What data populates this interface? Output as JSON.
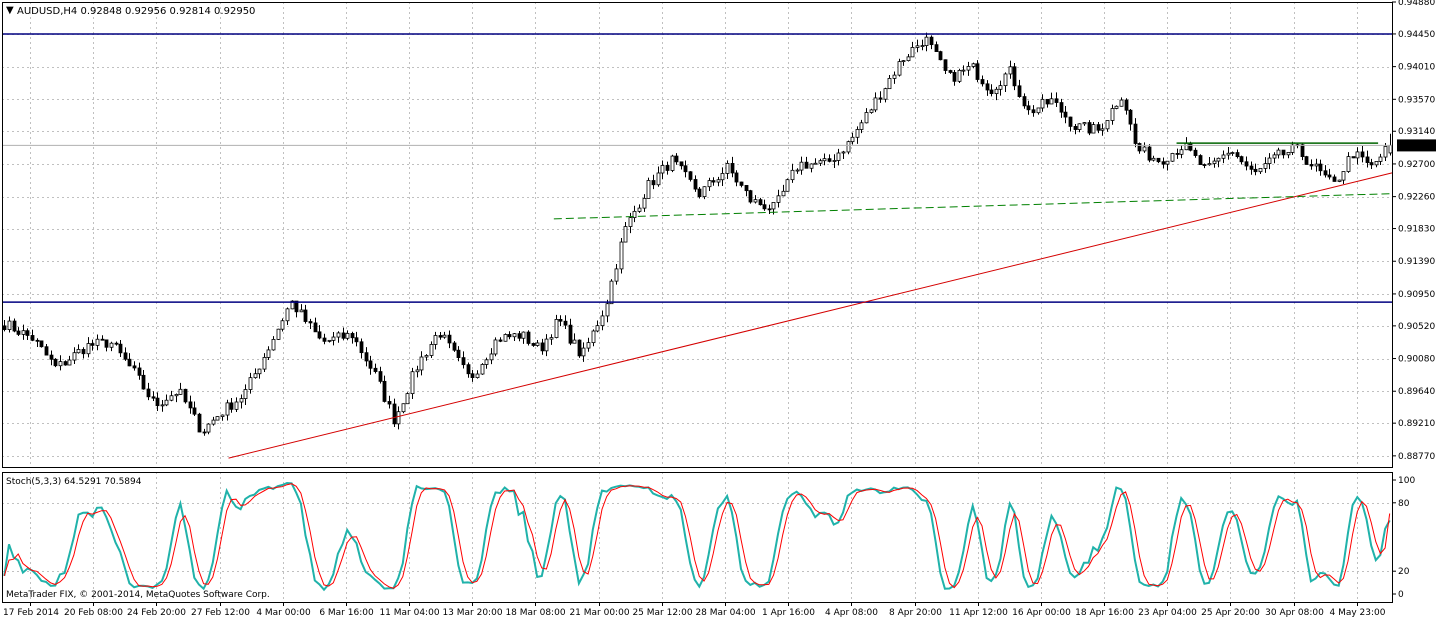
{
  "header": {
    "menu_glyph": "▼",
    "symbol_info": "AUDUSD,H4  0.92848 0.92956 0.92814 0.92950"
  },
  "stoch_header": "Stoch(5,3,3) 64.5291 70.5894",
  "copyright": "MetaTrader FIX, © 2001-2014, MetaQuotes Software Corp.",
  "colors": {
    "background": "#ffffff",
    "grid": "#c0c0c0",
    "candle": "#000000",
    "hline": "#000080",
    "trendline": "#d40000",
    "dashline": "#008000",
    "resistance": "#006400",
    "stoch_main": "#20b2aa",
    "stoch_signal": "#ff0000",
    "price_badge_bg": "#000000",
    "price_badge_text": "#ffffff"
  },
  "chart_data": {
    "type": "candlestick",
    "symbol": "AUDUSD",
    "timeframe": "H4",
    "ohlc_last": {
      "open": 0.92848,
      "high": 0.92956,
      "low": 0.92814,
      "close": 0.9295
    },
    "current_price_label": "0.92950",
    "current_price": 0.9295,
    "ylim": [
      0.8862,
      0.9488
    ],
    "y_ticks": [
      "0.94880",
      "0.94450",
      "0.94010",
      "0.93570",
      "0.93140",
      "0.92700",
      "0.92260",
      "0.91830",
      "0.91390",
      "0.90950",
      "0.90520",
      "0.90080",
      "0.89640",
      "0.89210",
      "0.88770"
    ],
    "x_ticks": [
      "17 Feb 2014",
      "20 Feb 08:00",
      "24 Feb 20:00",
      "27 Feb 12:00",
      "4 Mar 00:00",
      "6 Mar 16:00",
      "11 Mar 04:00",
      "13 Mar 20:00",
      "18 Mar 08:00",
      "21 Mar 00:00",
      "25 Mar 12:00",
      "28 Mar 04:00",
      "1 Apr 16:00",
      "4 Apr 08:00",
      "8 Apr 20:00",
      "11 Apr 12:00",
      "16 Apr 00:00",
      "18 Apr 16:00",
      "23 Apr 04:00",
      "25 Apr 20:00",
      "30 Apr 08:00",
      "4 May 23:00"
    ],
    "bar_count": 300,
    "price_path": [
      [
        0,
        0.9055
      ],
      [
        12,
        0.9035
      ],
      [
        22,
        0.8995
      ],
      [
        35,
        0.9025
      ],
      [
        45,
        0.903
      ],
      [
        55,
        0.899
      ],
      [
        64,
        0.8945
      ],
      [
        74,
        0.8965
      ],
      [
        84,
        0.891
      ],
      [
        92,
        0.8935
      ],
      [
        102,
        0.896
      ],
      [
        112,
        0.902
      ],
      [
        122,
        0.9085
      ],
      [
        135,
        0.903
      ],
      [
        148,
        0.904
      ],
      [
        158,
        0.8985
      ],
      [
        166,
        0.8925
      ],
      [
        176,
        0.9
      ],
      [
        185,
        0.9045
      ],
      [
        198,
        0.898
      ],
      [
        210,
        0.9035
      ],
      [
        220,
        0.904
      ],
      [
        228,
        0.902
      ],
      [
        236,
        0.906
      ],
      [
        246,
        0.901
      ],
      [
        256,
        0.908
      ],
      [
        264,
        0.918
      ],
      [
        274,
        0.924
      ],
      [
        284,
        0.9275
      ],
      [
        296,
        0.923
      ],
      [
        308,
        0.9265
      ],
      [
        318,
        0.922
      ],
      [
        328,
        0.921
      ],
      [
        338,
        0.927
      ],
      [
        350,
        0.927
      ],
      [
        360,
        0.93
      ],
      [
        372,
        0.936
      ],
      [
        382,
        0.941
      ],
      [
        392,
        0.944
      ],
      [
        402,
        0.9385
      ],
      [
        412,
        0.94
      ],
      [
        420,
        0.937
      ],
      [
        428,
        0.9395
      ],
      [
        436,
        0.934
      ],
      [
        446,
        0.9355
      ],
      [
        456,
        0.932
      ],
      [
        466,
        0.9315
      ],
      [
        476,
        0.9365
      ],
      [
        482,
        0.929
      ],
      [
        492,
        0.9275
      ],
      [
        502,
        0.9295
      ],
      [
        512,
        0.926
      ],
      [
        522,
        0.929
      ],
      [
        532,
        0.9255
      ],
      [
        542,
        0.928
      ],
      [
        550,
        0.929
      ],
      [
        558,
        0.9265
      ],
      [
        566,
        0.924
      ],
      [
        574,
        0.9285
      ],
      [
        582,
        0.9265
      ],
      [
        590,
        0.9295
      ]
    ],
    "price_path_x_max": 590,
    "horizontal_lines": [
      0.9445,
      0.9084
    ],
    "resistance_line": {
      "from_frac": 0.845,
      "to_frac": 0.99,
      "price": 0.9298
    },
    "trendline": {
      "start_frac": 0.163,
      "start_price": 0.8874,
      "end_price": 0.9258
    },
    "dashed_line": {
      "start_frac": 0.397,
      "start_price": 0.9196,
      "end_price": 0.923
    },
    "stochastic": {
      "k_period": 5,
      "d_period": 3,
      "slowing": 3,
      "main": 64.5291,
      "signal": 70.5894,
      "ylim": [
        0,
        100
      ],
      "y_ticks": [
        "100",
        "80",
        "20",
        "0"
      ],
      "levels": [
        80,
        20
      ]
    }
  }
}
